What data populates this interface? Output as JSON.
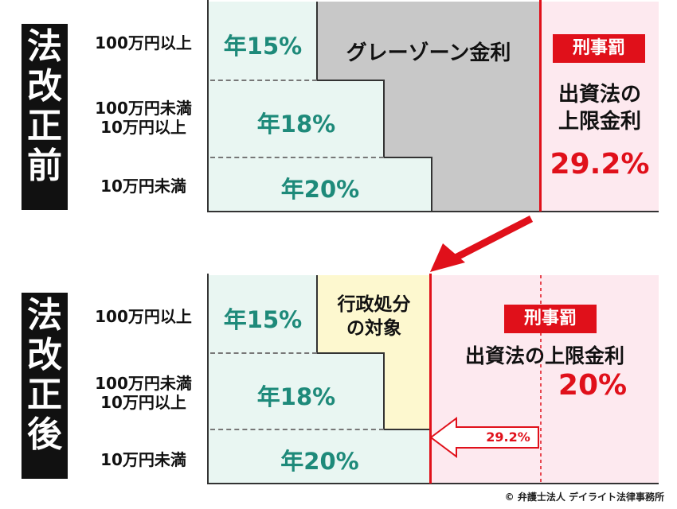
{
  "before": {
    "side_label": [
      "法",
      "改",
      "正",
      "前"
    ],
    "rows": [
      {
        "label": [
          "100万円以上"
        ],
        "rate": "年15%"
      },
      {
        "label": [
          "100万円未満",
          "10万円以上"
        ],
        "rate": "年18%"
      },
      {
        "label": [
          "10万円未満"
        ],
        "rate": "年20%"
      }
    ],
    "gray_zone_label": "グレーゾーン金利",
    "penalty_badge": "刑事罰",
    "limit_label": [
      "出資法の",
      "上限金利"
    ],
    "limit_rate": "29.2%"
  },
  "after": {
    "side_label": [
      "法",
      "改",
      "正",
      "後"
    ],
    "rows": [
      {
        "label": [
          "100万円以上"
        ],
        "rate": "年15%"
      },
      {
        "label": [
          "100万円未満",
          "10万円以上"
        ],
        "rate": "年18%"
      },
      {
        "label": [
          "10万円未満"
        ],
        "rate": "年20%"
      }
    ],
    "admin_label": [
      "行政処分",
      "の対象"
    ],
    "penalty_badge": "刑事罰",
    "limit_label": "出資法の上限金利",
    "limit_rate": "20%",
    "old_rate_arrow": "29.2%"
  },
  "credit": "© 弁護士法人 デイライト法律事務所",
  "colors": {
    "lightgreen": "#e9f6f2",
    "gray": "#c8c8c8",
    "pink": "#fde9ef",
    "yellow": "#fdf8cf",
    "red": "#e0101a",
    "teal": "#1e8a7a"
  }
}
